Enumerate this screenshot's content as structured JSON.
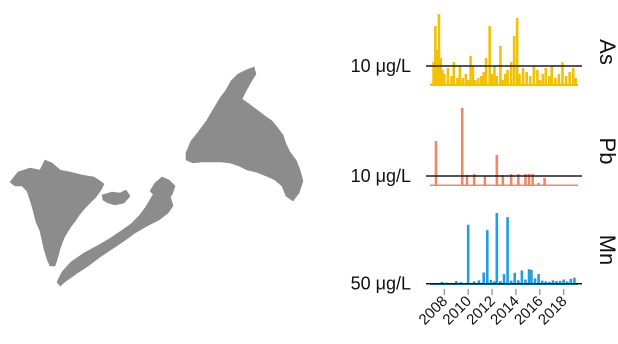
{
  "chart_data": {
    "type": "bar",
    "x_tick_labels": [
      "2008",
      "2010",
      "2012",
      "2014",
      "2016",
      "2018"
    ],
    "xlim": [
      2006.8,
      2019.2
    ],
    "map": {
      "description_icon": "atlantic-canada-map-icon",
      "color": "#8c8c8c"
    },
    "panels": [
      {
        "name": "As",
        "threshold": 10,
        "threshold_label": "10 μg/L",
        "color": "#F2C200",
        "ylim": [
          0,
          38
        ],
        "x": [
          2007.1,
          2007.25,
          2007.4,
          2007.55,
          2007.7,
          2007.85,
          2008.0,
          2008.3,
          2008.6,
          2008.8,
          2009.1,
          2009.3,
          2009.55,
          2009.8,
          2010.0,
          2010.2,
          2010.4,
          2010.6,
          2010.85,
          2011.1,
          2011.3,
          2011.5,
          2011.8,
          2012.0,
          2012.2,
          2012.4,
          2012.7,
          2012.9,
          2013.1,
          2013.3,
          2013.6,
          2013.85,
          2014.1,
          2014.3,
          2014.6,
          2014.9,
          2015.2,
          2015.5,
          2015.8,
          2016.0,
          2016.25,
          2016.5,
          2016.8,
          2017.0,
          2017.3,
          2017.6,
          2017.9,
          2018.2,
          2018.5,
          2018.8,
          2019.0
        ],
        "values": [
          12,
          30,
          18,
          36,
          14,
          8,
          6,
          9,
          5,
          12,
          4,
          10,
          4,
          6,
          3,
          15,
          10,
          3,
          4,
          5,
          7,
          14,
          30,
          6,
          10,
          5,
          20,
          3,
          6,
          8,
          12,
          25,
          34,
          6,
          9,
          7,
          5,
          10,
          8,
          3,
          6,
          9,
          5,
          10,
          4,
          6,
          12,
          5,
          7,
          9,
          4
        ],
        "baseline": 1.2
      },
      {
        "name": "Pb",
        "threshold": 10,
        "threshold_label": "10 μg/L",
        "color": "#F08868",
        "ylim": [
          0,
          78
        ],
        "x": [
          2007.3,
          2009.5,
          2009.9,
          2010.5,
          2011.4,
          2012.4,
          2012.9,
          2013.6,
          2014.2,
          2014.8,
          2015.1,
          2015.4,
          2015.9,
          2016.4
        ],
        "values": [
          45,
          78,
          11,
          12,
          10,
          31,
          11,
          12,
          12,
          12,
          12,
          12,
          3,
          8
        ],
        "baseline": 1.0
      },
      {
        "name": "Mn",
        "threshold": 50,
        "threshold_label": "50 μg/L",
        "color": "#1E9FE0",
        "ylim": [
          0,
          3000
        ],
        "x": [
          2007.4,
          2007.8,
          2008.2,
          2008.6,
          2009.0,
          2009.4,
          2009.7,
          2010.0,
          2010.5,
          2010.9,
          2011.3,
          2011.6,
          2011.9,
          2012.2,
          2012.4,
          2012.7,
          2013.0,
          2013.3,
          2013.6,
          2013.9,
          2014.2,
          2014.5,
          2014.8,
          2015.1,
          2015.3,
          2015.6,
          2015.9,
          2016.2,
          2016.5,
          2016.8,
          2017.1,
          2017.4,
          2017.7,
          2018.0,
          2018.3,
          2018.6,
          2018.9
        ],
        "values": [
          80,
          120,
          90,
          60,
          150,
          110,
          70,
          2320,
          140,
          180,
          480,
          2110,
          200,
          140,
          2770,
          150,
          420,
          2610,
          170,
          470,
          180,
          560,
          210,
          610,
          580,
          260,
          420,
          170,
          140,
          120,
          180,
          150,
          160,
          210,
          140,
          240,
          280
        ],
        "baseline": 55
      }
    ]
  }
}
